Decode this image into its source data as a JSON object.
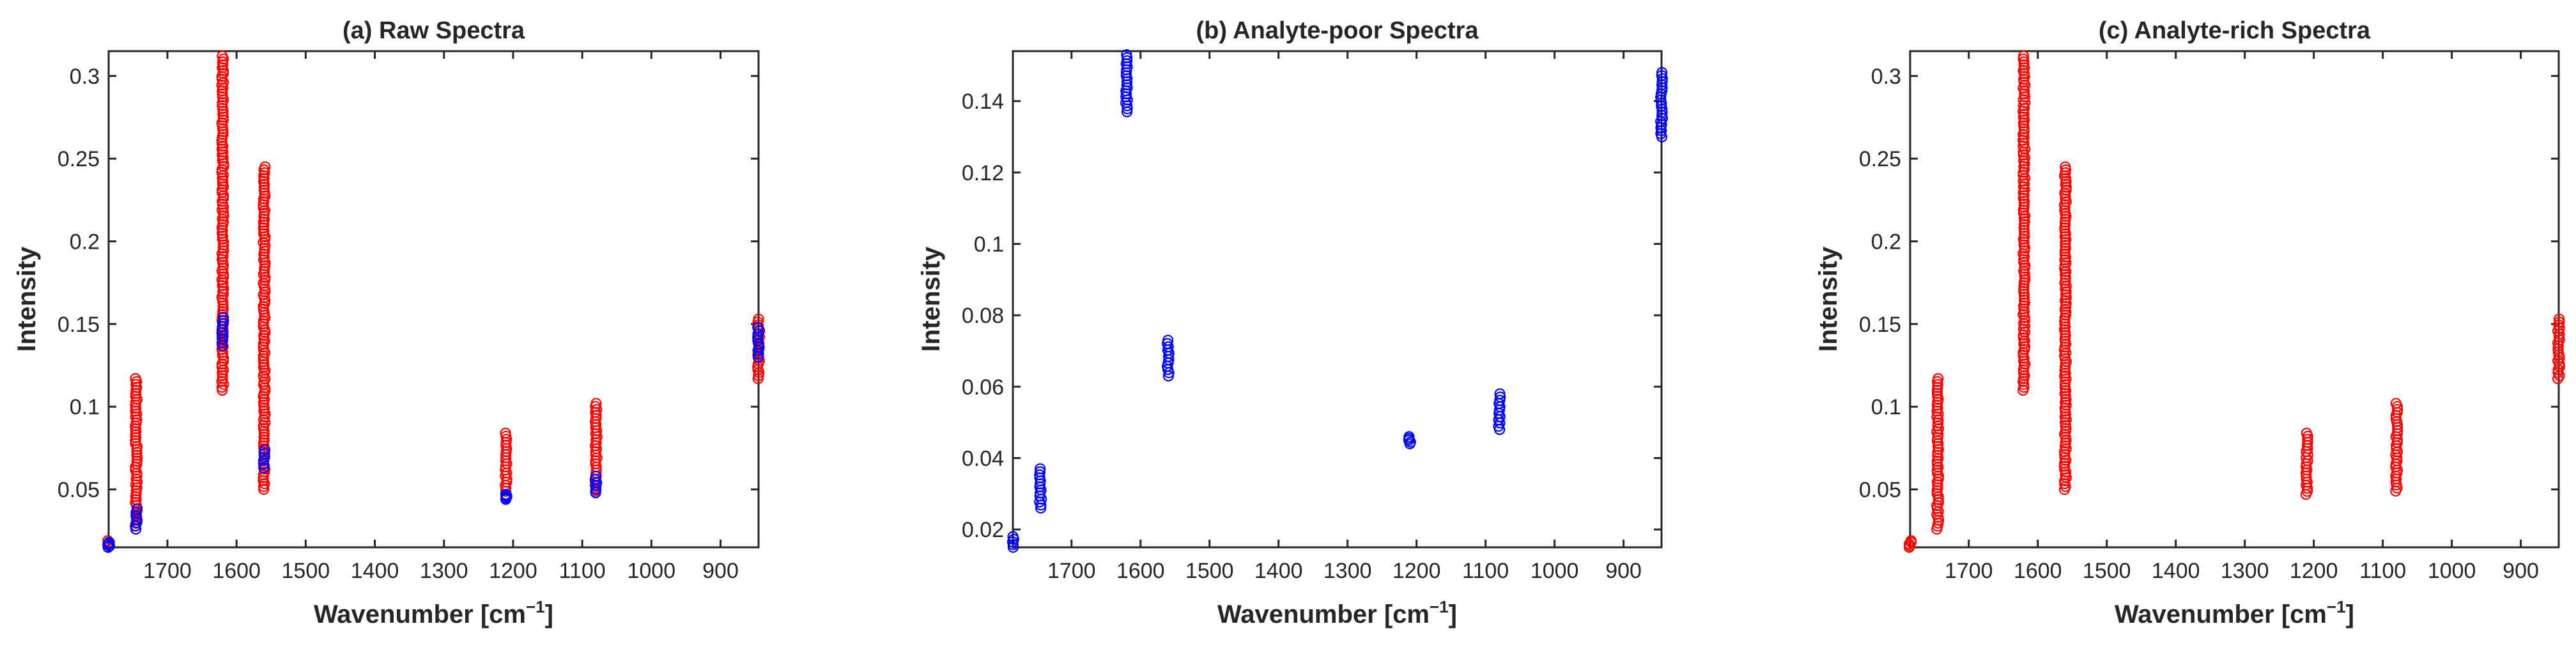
{
  "figure": {
    "colors": {
      "red": "#ff0000",
      "blue": "#0000ff",
      "axis": "#262626"
    }
  },
  "chart_data": [
    {
      "type": "scatter",
      "title": "(a) Raw Spectra",
      "xlabel": "Wavenumber [cm",
      "xlabel_sup": "−1",
      "xlabel_close": "]",
      "ylabel": "Intensity",
      "xlim": [
        1785,
        845
      ],
      "x_reversed": true,
      "ylim": [
        0.015,
        0.315
      ],
      "xticks": [
        1700,
        1600,
        1500,
        1400,
        1300,
        1200,
        1100,
        1000,
        900
      ],
      "yticks": [
        0.05,
        0.1,
        0.15,
        0.2,
        0.25,
        0.3
      ],
      "ytick_labels": [
        "0.05",
        "0.1",
        "0.15",
        "0.2",
        "0.25",
        "0.3"
      ],
      "marker": "open-circle",
      "series": [
        {
          "name": "analyte-rich",
          "color": "#ff0000",
          "clusters": [
            {
              "x": 1785,
              "min": 0.015,
              "max": 0.019
            },
            {
              "x": 1745,
              "min": 0.026,
              "max": 0.117
            },
            {
              "x": 1620,
              "min": 0.11,
              "max": 0.312
            },
            {
              "x": 1560,
              "min": 0.05,
              "max": 0.245
            },
            {
              "x": 1210,
              "min": 0.047,
              "max": 0.084
            },
            {
              "x": 1080,
              "min": 0.049,
              "max": 0.102
            },
            {
              "x": 845,
              "min": 0.117,
              "max": 0.153
            }
          ]
        },
        {
          "name": "analyte-poor",
          "color": "#0000ff",
          "clusters": [
            {
              "x": 1785,
              "min": 0.015,
              "max": 0.018
            },
            {
              "x": 1745,
              "min": 0.026,
              "max": 0.038
            },
            {
              "x": 1620,
              "min": 0.137,
              "max": 0.154
            },
            {
              "x": 1560,
              "min": 0.063,
              "max": 0.074
            },
            {
              "x": 1210,
              "min": 0.044,
              "max": 0.047
            },
            {
              "x": 1080,
              "min": 0.048,
              "max": 0.058
            },
            {
              "x": 845,
              "min": 0.13,
              "max": 0.148
            }
          ]
        }
      ]
    },
    {
      "type": "scatter",
      "title": "(b) Analyte-poor Spectra",
      "xlabel": "Wavenumber [cm",
      "xlabel_sup": "−1",
      "xlabel_close": "]",
      "ylabel": "Intensity",
      "xlim": [
        1785,
        845
      ],
      "x_reversed": true,
      "ylim": [
        0.015,
        0.154
      ],
      "xticks": [
        1700,
        1600,
        1500,
        1400,
        1300,
        1200,
        1100,
        1000,
        900
      ],
      "yticks": [
        0.02,
        0.04,
        0.06,
        0.08,
        0.1,
        0.12,
        0.14
      ],
      "ytick_labels": [
        "0.02",
        "0.04",
        "0.06",
        "0.08",
        "0.1",
        "0.12",
        "0.14"
      ],
      "marker": "open-circle",
      "series": [
        {
          "name": "analyte-poor",
          "color": "#0000ff",
          "clusters": [
            {
              "x": 1785,
              "min": 0.015,
              "max": 0.018
            },
            {
              "x": 1745,
              "min": 0.026,
              "max": 0.037
            },
            {
              "x": 1620,
              "min": 0.137,
              "max": 0.153
            },
            {
              "x": 1560,
              "min": 0.063,
              "max": 0.073
            },
            {
              "x": 1210,
              "min": 0.044,
              "max": 0.046
            },
            {
              "x": 1080,
              "min": 0.048,
              "max": 0.058
            },
            {
              "x": 845,
              "min": 0.13,
              "max": 0.148
            }
          ]
        }
      ]
    },
    {
      "type": "scatter",
      "title": "(c) Analyte-rich Spectra",
      "xlabel": "Wavenumber [cm",
      "xlabel_sup": "−1",
      "xlabel_close": "]",
      "ylabel": "Intensity",
      "xlim": [
        1785,
        845
      ],
      "x_reversed": true,
      "ylim": [
        0.015,
        0.315
      ],
      "xticks": [
        1700,
        1600,
        1500,
        1400,
        1300,
        1200,
        1100,
        1000,
        900
      ],
      "yticks": [
        0.05,
        0.1,
        0.15,
        0.2,
        0.25,
        0.3
      ],
      "ytick_labels": [
        "0.05",
        "0.1",
        "0.15",
        "0.2",
        "0.25",
        "0.3"
      ],
      "marker": "open-circle",
      "series": [
        {
          "name": "analyte-rich",
          "color": "#ff0000",
          "clusters": [
            {
              "x": 1785,
              "min": 0.015,
              "max": 0.019
            },
            {
              "x": 1745,
              "min": 0.026,
              "max": 0.117
            },
            {
              "x": 1620,
              "min": 0.11,
              "max": 0.312
            },
            {
              "x": 1560,
              "min": 0.05,
              "max": 0.245
            },
            {
              "x": 1210,
              "min": 0.047,
              "max": 0.084
            },
            {
              "x": 1080,
              "min": 0.049,
              "max": 0.102
            },
            {
              "x": 845,
              "min": 0.117,
              "max": 0.153
            }
          ]
        }
      ]
    }
  ]
}
